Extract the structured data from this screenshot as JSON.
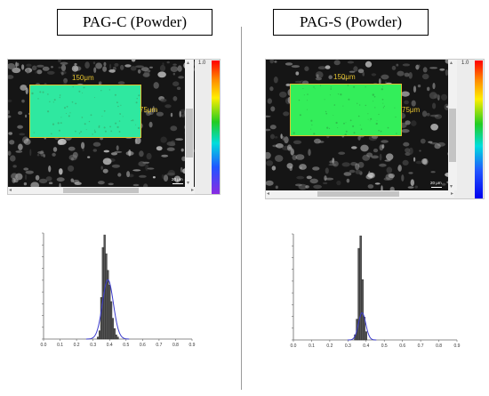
{
  "left": {
    "title": "PAG-C (Powder)",
    "width_label": "150μm",
    "height_label": "75μm",
    "scale_label": "20 μm",
    "colorbar_max": "1.0"
  },
  "right": {
    "title": "PAG-S (Powder)",
    "width_label": "150μm",
    "height_label": "75μm",
    "scale_label": "20 μm",
    "colorbar_max": "1.0"
  },
  "colors": {
    "roi_left": "#2fe8a0",
    "roi_right": "#33ee5a",
    "histogram_bars": "#555555",
    "fit_curve": "#3a3acc"
  },
  "chart_data": [
    {
      "type": "bar",
      "title": "",
      "xlabel": "",
      "ylabel": "",
      "xlim": [
        0.0,
        0.9
      ],
      "x_ticks": [
        "0.0",
        "0.1",
        "0.2",
        "0.3",
        "0.4",
        "0.5",
        "0.6",
        "0.7",
        "0.8",
        "0.9"
      ],
      "bin_width": 0.01,
      "bins": [
        0.33,
        0.34,
        0.35,
        0.36,
        0.37,
        0.38,
        0.39,
        0.4,
        0.41,
        0.42,
        0.43,
        0.44,
        0.45
      ],
      "values": [
        0.02,
        0.08,
        0.4,
        0.88,
        1.0,
        0.82,
        0.66,
        0.52,
        0.36,
        0.2,
        0.1,
        0.04,
        0.02
      ],
      "fit_curve": {
        "type": "gaussian",
        "mean": 0.39,
        "sd": 0.033,
        "peak": 0.57
      }
    },
    {
      "type": "bar",
      "title": "",
      "xlabel": "",
      "ylabel": "",
      "xlim": [
        0.0,
        0.9
      ],
      "x_ticks": [
        "0.0",
        "0.1",
        "0.2",
        "0.3",
        "0.4",
        "0.5",
        "0.6",
        "0.7",
        "0.8",
        "0.9"
      ],
      "bin_width": 0.01,
      "bins": [
        0.34,
        0.35,
        0.36,
        0.37,
        0.38,
        0.39,
        0.4
      ],
      "values": [
        0.05,
        0.2,
        0.88,
        1.0,
        0.58,
        0.22,
        0.08
      ],
      "fit_curve": {
        "type": "gaussian",
        "mean": 0.378,
        "sd": 0.02,
        "peak": 0.26
      }
    }
  ]
}
